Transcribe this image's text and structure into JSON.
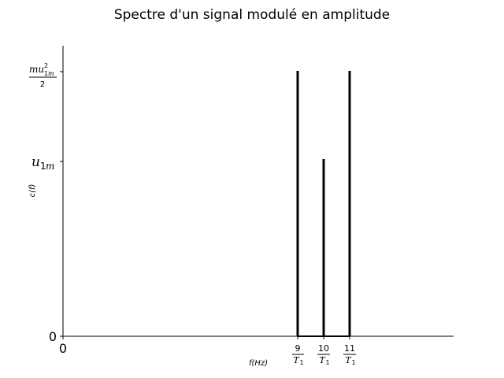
{
  "chart_data": {
    "type": "bar",
    "title": "Spectre d'un signal modulé en amplitude",
    "xlabel": "f(Hz)",
    "ylabel": "c(f)",
    "x_tick_labels": [
      "0",
      "9/T1",
      "10/T1",
      "11/T1"
    ],
    "y_tick_labels": [
      "0",
      "u1m",
      "mu1m²/2"
    ],
    "lines": [
      {
        "x": "9/T1",
        "y": "mu1m²/2"
      },
      {
        "x": "10/T1",
        "y": "u1m"
      },
      {
        "x": "11/T1",
        "y": "mu1m²/2"
      }
    ],
    "grid": false,
    "color": "#000000"
  }
}
